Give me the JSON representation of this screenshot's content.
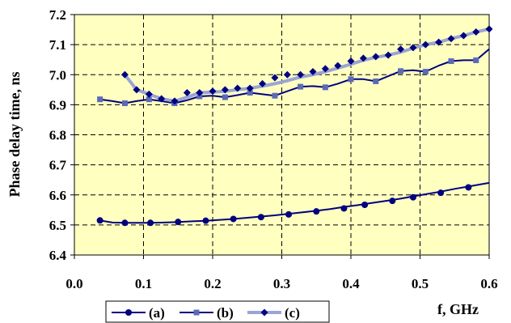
{
  "chart_data": {
    "type": "line",
    "ylabel": "Phase delay time, ns",
    "xlabel": "f, GHz",
    "xlim": [
      0.0,
      0.6
    ],
    "ylim": [
      6.4,
      7.2
    ],
    "xticks": [
      "0.0",
      "0.1",
      "0.2",
      "0.3",
      "0.4",
      "0.5",
      "0.6"
    ],
    "yticks": [
      "6.4",
      "6.5",
      "6.6",
      "6.7",
      "6.8",
      "6.9",
      "7.0",
      "7.1",
      "7.2"
    ],
    "grid": true,
    "legend_position": "bottom",
    "colors": {
      "plot_bg": "#ffffc0",
      "grid": "#000000",
      "series_a": "#000080",
      "series_b": "#000080",
      "series_b_markers": "#5a6ab8",
      "series_c": "#9aa4d6",
      "series_c_markers": "#000080"
    },
    "series": [
      {
        "name": "(a)",
        "marker": "circle",
        "x": [
          0.037,
          0.055,
          0.073,
          0.09,
          0.11,
          0.13,
          0.15,
          0.17,
          0.19,
          0.21,
          0.23,
          0.25,
          0.27,
          0.29,
          0.31,
          0.33,
          0.35,
          0.37,
          0.39,
          0.41,
          0.43,
          0.45,
          0.47,
          0.49,
          0.51,
          0.53,
          0.55,
          0.57,
          0.6
        ],
        "y": [
          6.515,
          6.508,
          6.507,
          6.507,
          6.507,
          6.508,
          6.51,
          6.512,
          6.514,
          6.517,
          6.52,
          6.524,
          6.528,
          6.532,
          6.537,
          6.542,
          6.547,
          6.553,
          6.56,
          6.566,
          6.573,
          6.58,
          6.587,
          6.595,
          6.603,
          6.611,
          6.62,
          6.628,
          6.64
        ],
        "marker_x": [
          0.037,
          0.073,
          0.11,
          0.15,
          0.19,
          0.23,
          0.27,
          0.31,
          0.35,
          0.39,
          0.42,
          0.46,
          0.49,
          0.53,
          0.57
        ],
        "marker_y": [
          6.515,
          6.507,
          6.507,
          6.51,
          6.514,
          6.52,
          6.526,
          6.535,
          6.545,
          6.555,
          6.567,
          6.58,
          6.592,
          6.607,
          6.625
        ]
      },
      {
        "name": "(b)",
        "marker": "square",
        "x": [
          0.037,
          0.055,
          0.073,
          0.09,
          0.108,
          0.126,
          0.145,
          0.163,
          0.181,
          0.2,
          0.218,
          0.236,
          0.254,
          0.272,
          0.29,
          0.308,
          0.327,
          0.345,
          0.363,
          0.381,
          0.4,
          0.418,
          0.436,
          0.454,
          0.472,
          0.49,
          0.508,
          0.527,
          0.545,
          0.563,
          0.581,
          0.6
        ],
        "y": [
          6.918,
          6.912,
          6.905,
          6.912,
          6.918,
          6.912,
          6.905,
          6.915,
          6.928,
          6.93,
          6.925,
          6.932,
          6.94,
          6.935,
          6.93,
          6.945,
          6.96,
          6.962,
          6.958,
          6.97,
          6.985,
          6.985,
          6.978,
          6.995,
          7.012,
          7.015,
          7.01,
          7.03,
          7.045,
          7.048,
          7.048,
          7.085
        ],
        "marker_x": [
          0.037,
          0.073,
          0.108,
          0.145,
          0.181,
          0.218,
          0.254,
          0.29,
          0.327,
          0.363,
          0.4,
          0.436,
          0.472,
          0.508,
          0.545,
          0.581
        ],
        "marker_y": [
          6.918,
          6.905,
          6.918,
          6.905,
          6.928,
          6.925,
          6.94,
          6.93,
          6.96,
          6.958,
          6.985,
          6.978,
          7.012,
          7.01,
          7.045,
          7.048
        ]
      },
      {
        "name": "(c)",
        "marker": "diamond",
        "x": [
          0.073,
          0.09,
          0.108,
          0.126,
          0.145,
          0.163,
          0.181,
          0.2,
          0.218,
          0.236,
          0.254,
          0.272,
          0.29,
          0.308,
          0.327,
          0.345,
          0.363,
          0.381,
          0.4,
          0.418,
          0.436,
          0.454,
          0.472,
          0.49,
          0.508,
          0.527,
          0.545,
          0.563,
          0.581,
          0.6
        ],
        "y": [
          7.0,
          6.95,
          6.935,
          6.92,
          6.912,
          6.925,
          6.94,
          6.942,
          6.945,
          6.95,
          6.955,
          6.962,
          6.97,
          6.98,
          6.992,
          7.0,
          7.01,
          7.022,
          7.035,
          7.048,
          7.058,
          7.065,
          7.075,
          7.088,
          7.1,
          7.108,
          7.12,
          7.13,
          7.142,
          7.152
        ],
        "marker_x": [
          0.073,
          0.09,
          0.108,
          0.126,
          0.145,
          0.163,
          0.181,
          0.2,
          0.218,
          0.236,
          0.254,
          0.272,
          0.29,
          0.308,
          0.327,
          0.345,
          0.363,
          0.381,
          0.4,
          0.418,
          0.436,
          0.454,
          0.472,
          0.49,
          0.508,
          0.527,
          0.545,
          0.563,
          0.581,
          0.6
        ],
        "marker_y": [
          7.0,
          6.95,
          6.935,
          6.92,
          6.912,
          6.94,
          6.94,
          6.945,
          6.95,
          6.955,
          6.955,
          6.97,
          6.99,
          7.0,
          7.0,
          7.01,
          7.02,
          7.03,
          7.045,
          7.055,
          7.06,
          7.065,
          7.085,
          7.09,
          7.1,
          7.108,
          7.12,
          7.13,
          7.142,
          7.152
        ]
      }
    ]
  }
}
